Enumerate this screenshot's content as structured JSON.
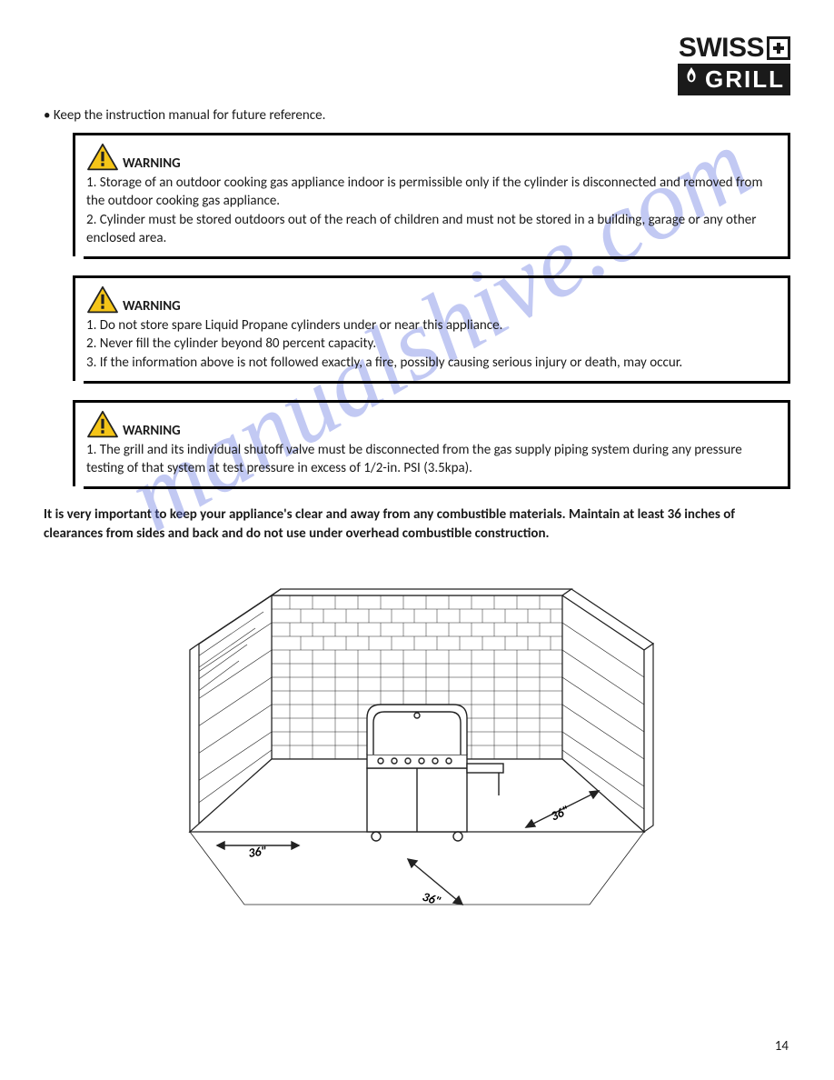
{
  "logo": {
    "top": "SWISS",
    "bottom": "GRILL"
  },
  "intro": "• Keep the instruction manual for future reference.",
  "warnings": [
    {
      "label": "WARNING",
      "body": "1. Storage of an outdoor cooking gas appliance indoor is permissible only if the cylinder is disconnected and removed from the outdoor cooking gas appliance.\n2. Cylinder must be stored outdoors out of the reach of children and must not be stored in a building, garage or any other enclosed area."
    },
    {
      "label": "WARNING",
      "body": "1. Do not store spare Liquid Propane cylinders under or near this appliance.\n2. Never fill the cylinder beyond 80 percent capacity.\n3. If the information above is not followed exactly, a fire, possibly causing serious injury or death, may occur."
    },
    {
      "label": "WARNING",
      "body": "1. The grill and its individual shutoff valve must be disconnected from the gas supply piping system during any pressure testing of that system at test pressure in excess of 1/2-in. PSI (3.5kpa)."
    }
  ],
  "important_note": "It is very important to keep your appliance's clear and away from any combustible materials. Maintain at least 36 inches of clearances from sides and back and do not use under overhead combustible construction.",
  "diagram": {
    "left_label": "36\"",
    "right_label": "36\"",
    "front_label": "36\"",
    "stroke": "#222222",
    "brick_fill": "#ffffff"
  },
  "watermark": "manualshive.com",
  "page_number": "14",
  "colors": {
    "text": "#1a1a1a",
    "border": "#000000",
    "warning_triangle_fill": "#f5c518",
    "warning_triangle_stroke": "#222222",
    "watermark": "rgba(80,100,220,0.35)"
  }
}
